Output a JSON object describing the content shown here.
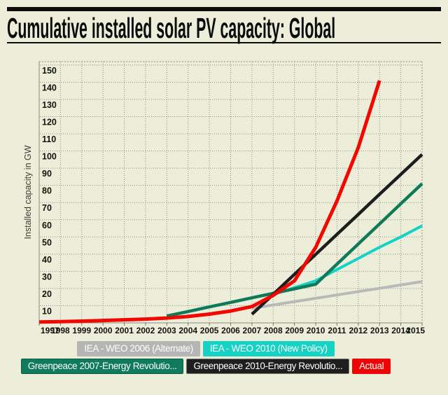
{
  "page": {
    "title": "Cumulative installed solar PV capacity: Global",
    "background_color": "#edeeda",
    "rule_color": "#0c0c0c"
  },
  "chart_data": {
    "type": "line",
    "title": "Cumulative installed solar PV capacity: Global",
    "xlabel": "",
    "ylabel": "Installed capacity in GW",
    "xlim": [
      1997,
      2015
    ],
    "ylim": [
      0,
      152
    ],
    "x_ticks": [
      1997,
      1998,
      1999,
      2000,
      2001,
      2002,
      2003,
      2004,
      2005,
      2006,
      2007,
      2008,
      2009,
      2010,
      2011,
      2012,
      2013,
      2014,
      2015
    ],
    "y_ticks": [
      10,
      20,
      30,
      40,
      50,
      60,
      70,
      80,
      90,
      100,
      110,
      120,
      130,
      140,
      150
    ],
    "grid": "dotted",
    "legend_position": "bottom",
    "grid_color": "#90908a",
    "axis_color": "#8b8b82",
    "tick_text_color": "#13130e",
    "series": [
      {
        "name": "IEA - WEO 2006 (Alternate)",
        "color": "#b9b9b9",
        "width": 4,
        "x": [
          2007,
          2008,
          2009,
          2010,
          2011,
          2012,
          2013,
          2014,
          2015
        ],
        "values": [
          8.5,
          10.4,
          12.4,
          14.3,
          16.2,
          18.2,
          20.1,
          22.1,
          24
        ]
      },
      {
        "name": "IEA - WEO 2010 (New Policy)",
        "color": "#15d2c6",
        "width": 4,
        "x": [
          2008,
          2009,
          2010,
          2011,
          2012,
          2013,
          2014,
          2015
        ],
        "values": [
          16.5,
          20.5,
          24.5,
          31,
          37.5,
          44,
          50,
          56.5
        ]
      },
      {
        "name": "Greenpeace 2007-Energy Revolution",
        "color": "#0e7a58",
        "width": 4.5,
        "x": [
          2003,
          2004,
          2005,
          2006,
          2007,
          2008,
          2009,
          2010,
          2011,
          2012,
          2013,
          2014,
          2015
        ],
        "values": [
          4,
          6.6,
          9.3,
          11.9,
          14.6,
          17.2,
          19.8,
          22.5,
          34.2,
          45.9,
          57.6,
          69.3,
          81
        ]
      },
      {
        "name": "Greenpeace 2010-Energy Revolution",
        "color": "#1d1d1d",
        "width": 4.5,
        "x": [
          2007,
          2008,
          2009,
          2010,
          2011,
          2012,
          2013,
          2014,
          2015
        ],
        "values": [
          5,
          16.6,
          28.3,
          39.9,
          51.5,
          63.1,
          74.8,
          86.4,
          98
        ]
      },
      {
        "name": "Actual",
        "color": "#f20800",
        "width": 5,
        "x": [
          1997,
          1998,
          1999,
          2000,
          2001,
          2002,
          2003,
          2004,
          2005,
          2006,
          2007,
          2008,
          2009,
          2010,
          2011,
          2012,
          2013
        ],
        "values": [
          0.5,
          0.7,
          1.0,
          1.4,
          1.8,
          2.2,
          2.8,
          3.7,
          5.1,
          6.9,
          9.5,
          16,
          24.5,
          44,
          71,
          102,
          141
        ]
      }
    ]
  },
  "legend": {
    "rows": [
      [
        {
          "label": "IEA - WEO 2006 (Alternate)",
          "bg": "#b5b5b5",
          "border": ""
        },
        {
          "label": "IEA - WEO 2010 (New Policy)",
          "bg": "#16d2c4",
          "border": ""
        }
      ],
      [
        {
          "label": "Greenpeace 2007-Energy Revolutio...",
          "bg": "#0f7a5c",
          "border": "#0b5f46"
        },
        {
          "label": "Greenpeace 2010-Energy Revolutio...",
          "bg": "#1e1e1e",
          "border": "#76766e"
        },
        {
          "label": "Actual",
          "bg": "#ee0404",
          "border": ""
        }
      ]
    ]
  }
}
